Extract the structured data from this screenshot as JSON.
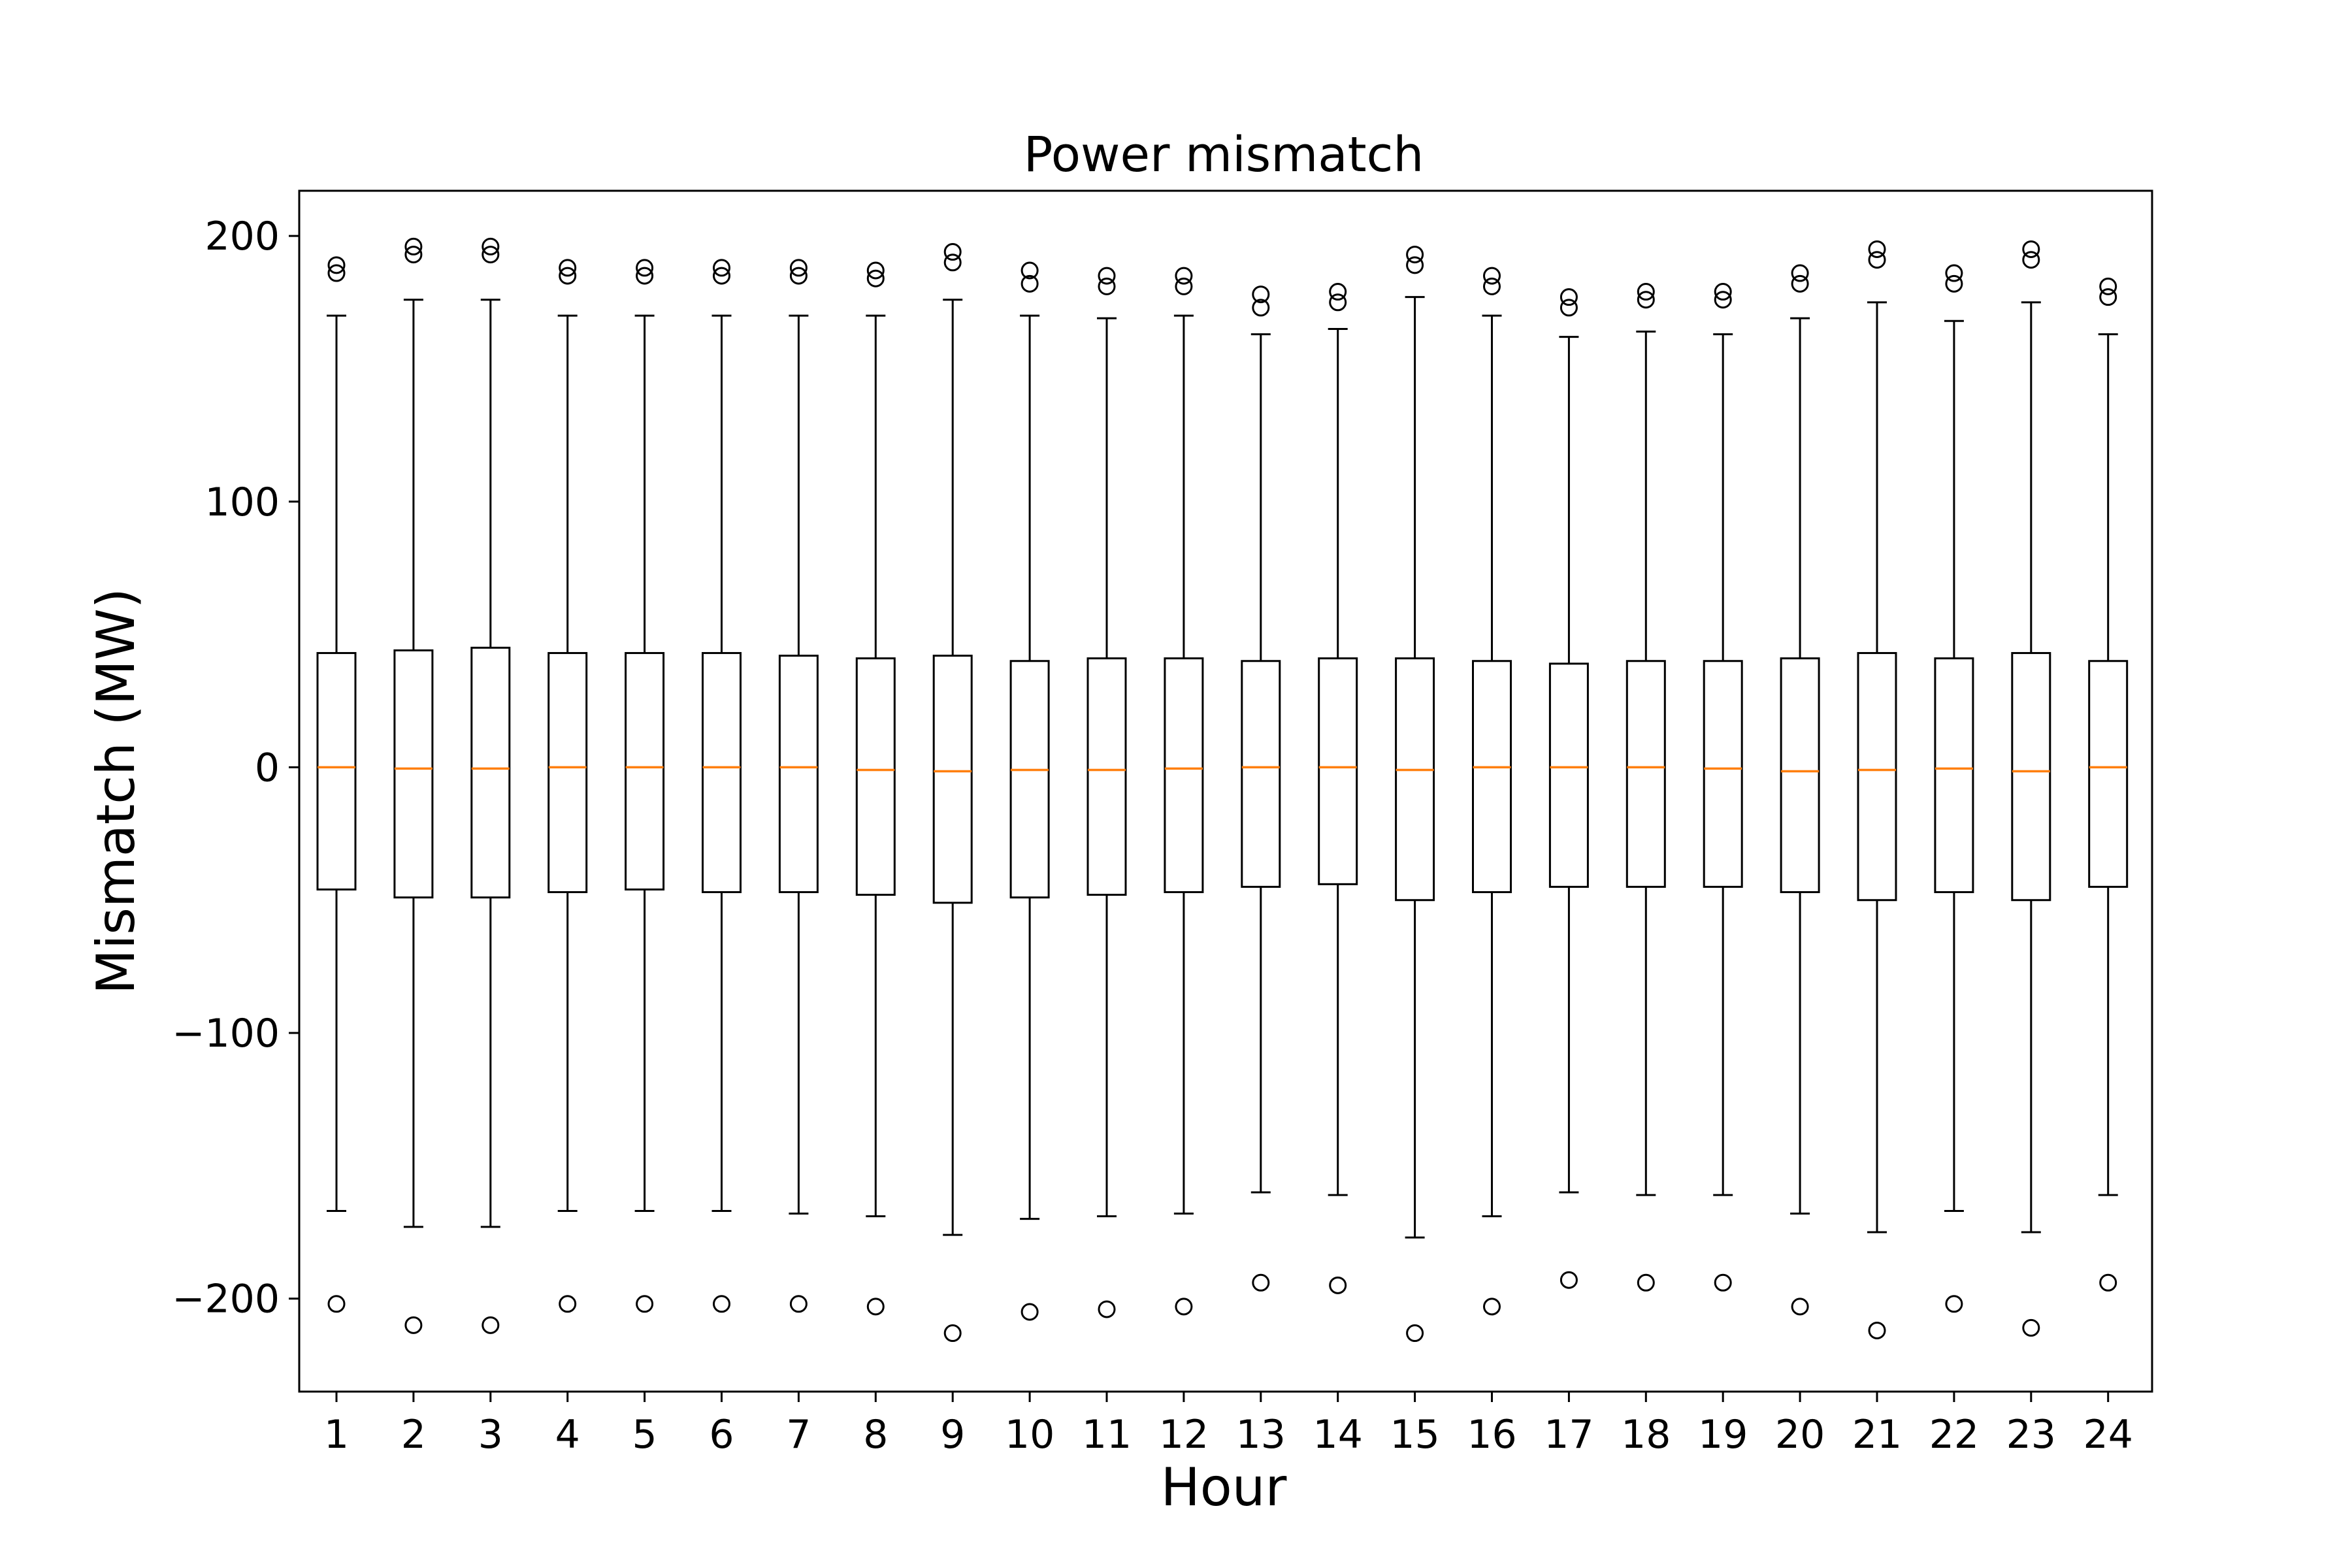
{
  "chart_data": {
    "type": "box",
    "title": "Power mismatch",
    "xlabel": "Hour",
    "ylabel": "Mismatch (MW)",
    "ylim": [
      -235,
      217
    ],
    "yticks": [
      200,
      100,
      0,
      -100,
      -200
    ],
    "ytick_labels": [
      "200",
      "100",
      "0",
      "−100",
      "−200"
    ],
    "grid": false,
    "legend": "none",
    "colors": {
      "box": "#000000",
      "median": "#ff7f0e",
      "flier": "#000000"
    },
    "categories": [
      "1",
      "2",
      "3",
      "4",
      "5",
      "6",
      "7",
      "8",
      "9",
      "10",
      "11",
      "12",
      "13",
      "14",
      "15",
      "16",
      "17",
      "18",
      "19",
      "20",
      "21",
      "22",
      "23",
      "24"
    ],
    "boxes": [
      {
        "whisker_low": -167,
        "q1": -46,
        "median": 0,
        "q3": 43,
        "whisker_high": 170,
        "fliers": [
          189,
          186,
          -202
        ]
      },
      {
        "whisker_low": -173,
        "q1": -49,
        "median": -0.5,
        "q3": 44,
        "whisker_high": 176,
        "fliers": [
          196,
          193,
          -210
        ]
      },
      {
        "whisker_low": -173,
        "q1": -49,
        "median": -0.5,
        "q3": 45,
        "whisker_high": 176,
        "fliers": [
          196,
          193,
          -210
        ]
      },
      {
        "whisker_low": -167,
        "q1": -47,
        "median": 0,
        "q3": 43,
        "whisker_high": 170,
        "fliers": [
          188,
          185,
          -202
        ]
      },
      {
        "whisker_low": -167,
        "q1": -46,
        "median": 0,
        "q3": 43,
        "whisker_high": 170,
        "fliers": [
          188,
          185,
          -202
        ]
      },
      {
        "whisker_low": -167,
        "q1": -47,
        "median": 0,
        "q3": 43,
        "whisker_high": 170,
        "fliers": [
          188,
          185,
          -202
        ]
      },
      {
        "whisker_low": -168,
        "q1": -47,
        "median": 0,
        "q3": 42,
        "whisker_high": 170,
        "fliers": [
          188,
          185,
          -202
        ]
      },
      {
        "whisker_low": -169,
        "q1": -48,
        "median": -1,
        "q3": 41,
        "whisker_high": 170,
        "fliers": [
          187,
          184,
          -203
        ]
      },
      {
        "whisker_low": -176,
        "q1": -51,
        "median": -1.5,
        "q3": 42,
        "whisker_high": 176,
        "fliers": [
          194,
          190,
          -213
        ]
      },
      {
        "whisker_low": -170,
        "q1": -49,
        "median": -1,
        "q3": 40,
        "whisker_high": 170,
        "fliers": [
          187,
          182,
          -205
        ]
      },
      {
        "whisker_low": -169,
        "q1": -48,
        "median": -1,
        "q3": 41,
        "whisker_high": 169,
        "fliers": [
          185,
          181,
          -204
        ]
      },
      {
        "whisker_low": -168,
        "q1": -47,
        "median": -0.5,
        "q3": 41,
        "whisker_high": 170,
        "fliers": [
          185,
          181,
          -203
        ]
      },
      {
        "whisker_low": -160,
        "q1": -45,
        "median": 0,
        "q3": 40,
        "whisker_high": 163,
        "fliers": [
          178,
          173,
          -194
        ]
      },
      {
        "whisker_low": -161,
        "q1": -44,
        "median": 0,
        "q3": 41,
        "whisker_high": 165,
        "fliers": [
          179,
          175,
          -195
        ]
      },
      {
        "whisker_low": -177,
        "q1": -50,
        "median": -1,
        "q3": 41,
        "whisker_high": 177,
        "fliers": [
          193,
          189,
          -213
        ]
      },
      {
        "whisker_low": -169,
        "q1": -47,
        "median": 0,
        "q3": 40,
        "whisker_high": 170,
        "fliers": [
          185,
          181,
          -203
        ]
      },
      {
        "whisker_low": -160,
        "q1": -45,
        "median": 0,
        "q3": 39,
        "whisker_high": 162,
        "fliers": [
          177,
          173,
          -193
        ]
      },
      {
        "whisker_low": -161,
        "q1": -45,
        "median": 0,
        "q3": 40,
        "whisker_high": 164,
        "fliers": [
          179,
          176,
          -194
        ]
      },
      {
        "whisker_low": -161,
        "q1": -45,
        "median": -0.5,
        "q3": 40,
        "whisker_high": 163,
        "fliers": [
          179,
          176,
          -194
        ]
      },
      {
        "whisker_low": -168,
        "q1": -47,
        "median": -1.5,
        "q3": 41,
        "whisker_high": 169,
        "fliers": [
          186,
          182,
          -203
        ]
      },
      {
        "whisker_low": -175,
        "q1": -50,
        "median": -1,
        "q3": 43,
        "whisker_high": 175,
        "fliers": [
          195,
          191,
          -212
        ]
      },
      {
        "whisker_low": -167,
        "q1": -47,
        "median": -0.5,
        "q3": 41,
        "whisker_high": 168,
        "fliers": [
          186,
          182,
          -202
        ]
      },
      {
        "whisker_low": -175,
        "q1": -50,
        "median": -1.5,
        "q3": 43,
        "whisker_high": 175,
        "fliers": [
          195,
          191,
          -211
        ]
      },
      {
        "whisker_low": -161,
        "q1": -45,
        "median": 0,
        "q3": 40,
        "whisker_high": 163,
        "fliers": [
          181,
          177,
          -194
        ]
      }
    ]
  }
}
